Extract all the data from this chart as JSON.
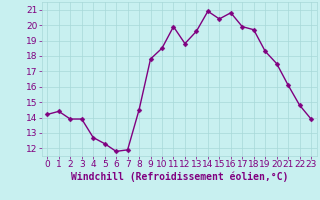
{
  "x": [
    0,
    1,
    2,
    3,
    4,
    5,
    6,
    7,
    8,
    9,
    10,
    11,
    12,
    13,
    14,
    15,
    16,
    17,
    18,
    19,
    20,
    21,
    22,
    23
  ],
  "y": [
    14.2,
    14.4,
    13.9,
    13.9,
    12.7,
    12.3,
    11.8,
    11.9,
    14.5,
    17.8,
    18.5,
    19.9,
    18.8,
    19.6,
    20.9,
    20.4,
    20.8,
    19.9,
    19.7,
    18.3,
    17.5,
    16.1,
    14.8,
    13.9
  ],
  "line_color": "#800080",
  "marker_color": "#800080",
  "bg_color": "#c8f0f0",
  "grid_color": "#a8d8d8",
  "xlabel": "Windchill (Refroidissement éolien,°C)",
  "xlim": [
    -0.5,
    23.5
  ],
  "ylim": [
    11.5,
    21.5
  ],
  "yticks": [
    12,
    13,
    14,
    15,
    16,
    17,
    18,
    19,
    20,
    21
  ],
  "xticks": [
    0,
    1,
    2,
    3,
    4,
    5,
    6,
    7,
    8,
    9,
    10,
    11,
    12,
    13,
    14,
    15,
    16,
    17,
    18,
    19,
    20,
    21,
    22,
    23
  ],
  "tick_color": "#800080",
  "label_color": "#800080",
  "font_size": 6.5,
  "xlabel_fontsize": 7,
  "line_width": 1.0,
  "marker_size": 2.5
}
